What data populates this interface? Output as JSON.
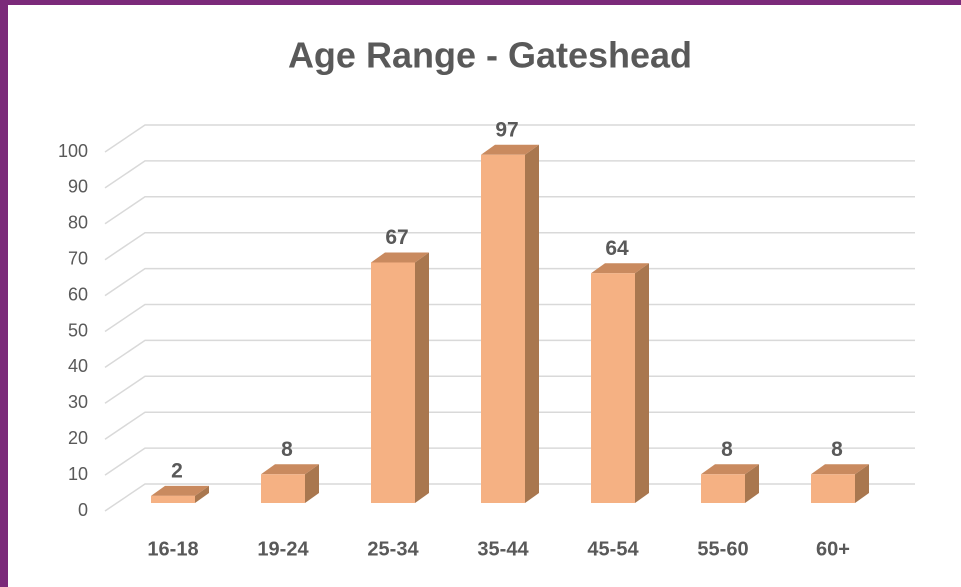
{
  "chart_data": {
    "type": "bar",
    "title": "Age Range - Gateshead",
    "categories": [
      "16-18",
      "19-24",
      "25-34",
      "35-44",
      "45-54",
      "55-60",
      "60+"
    ],
    "values": [
      2,
      8,
      67,
      97,
      64,
      8,
      8
    ],
    "color": "#f5b183",
    "ylim": [
      0,
      100
    ],
    "yticks": [
      0,
      10,
      20,
      30,
      40,
      50,
      60,
      70,
      80,
      90,
      100
    ],
    "grid": true
  }
}
